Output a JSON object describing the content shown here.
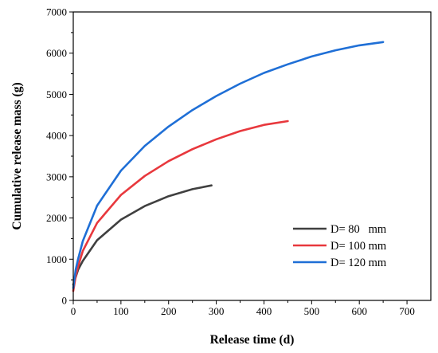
{
  "chart_data": {
    "type": "line",
    "title": "",
    "xlabel": "Release time (d)",
    "ylabel": "Cumulative release mass (g)",
    "xlim": [
      0,
      750
    ],
    "ylim": [
      0,
      7000
    ],
    "xticks": [
      0,
      100,
      200,
      300,
      400,
      500,
      600,
      700
    ],
    "yticks": [
      0,
      1000,
      2000,
      3000,
      4000,
      5000,
      6000,
      7000
    ],
    "grid": false,
    "legend_position": "bottom-right",
    "series": [
      {
        "name": "D= 80   mm",
        "color": "#404040",
        "x": [
          0,
          5,
          10,
          20,
          50,
          100,
          150,
          200,
          250,
          290
        ],
        "y": [
          380,
          560,
          740,
          960,
          1460,
          1960,
          2290,
          2530,
          2700,
          2790
        ]
      },
      {
        "name": "D= 100 mm",
        "color": "#e8383d",
        "x": [
          0,
          5,
          10,
          20,
          50,
          100,
          150,
          200,
          250,
          300,
          350,
          400,
          450
        ],
        "y": [
          230,
          580,
          820,
          1200,
          1880,
          2560,
          3020,
          3380,
          3670,
          3910,
          4110,
          4260,
          4350
        ]
      },
      {
        "name": "D= 120 mm",
        "color": "#1f6fd6",
        "x": [
          0,
          5,
          10,
          20,
          50,
          100,
          150,
          200,
          250,
          300,
          350,
          400,
          450,
          500,
          550,
          600,
          650
        ],
        "y": [
          300,
          740,
          1000,
          1440,
          2300,
          3150,
          3750,
          4220,
          4620,
          4960,
          5260,
          5520,
          5730,
          5920,
          6070,
          6190,
          6270
        ]
      }
    ]
  }
}
